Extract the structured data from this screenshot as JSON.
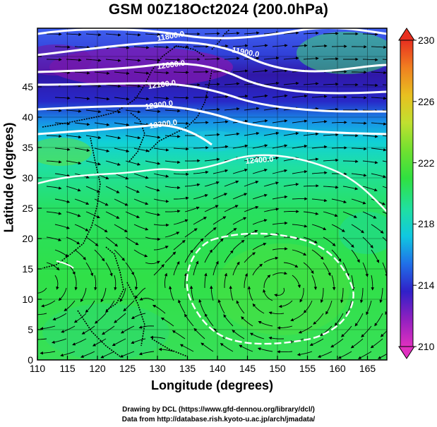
{
  "title": "GSM 00Z18Oct2024 (200.0hPa)",
  "xlabel": "Longitude (degrees)",
  "ylabel": "Latitude  (degrees)",
  "x_ticks": [
    "110",
    "115",
    "120",
    "125",
    "130",
    "135",
    "140",
    "145",
    "150",
    "155",
    "160",
    "165"
  ],
  "y_ticks": [
    "0",
    "5",
    "10",
    "15",
    "20",
    "25",
    "30",
    "35",
    "40",
    "45"
  ],
  "colorbar": {
    "ticks": [
      "230",
      "226",
      "222",
      "218",
      "214",
      "210"
    ],
    "min": 210,
    "max": 230,
    "colors": [
      "#e030c0",
      "#9020c0",
      "#3020c8",
      "#2070e8",
      "#10c8e0",
      "#20e0a0",
      "#30e040",
      "#70e030",
      "#c0e030",
      "#e8c020",
      "#f08020",
      "#e83020"
    ]
  },
  "contours": [
    {
      "label": "11800.0"
    },
    {
      "label": "11900.0"
    },
    {
      "label": "12000.0"
    },
    {
      "label": "12100.0"
    },
    {
      "label": "12200.0"
    },
    {
      "label": "12300.0"
    },
    {
      "label": "12400.0"
    }
  ],
  "credits": {
    "line1": "Drawing by DCL (https://www.gfd-dennou.org/library/dcl/)",
    "line2": "Data from http://database.rish.kyoto-u.ac.jp/arch/jmadata/"
  }
}
